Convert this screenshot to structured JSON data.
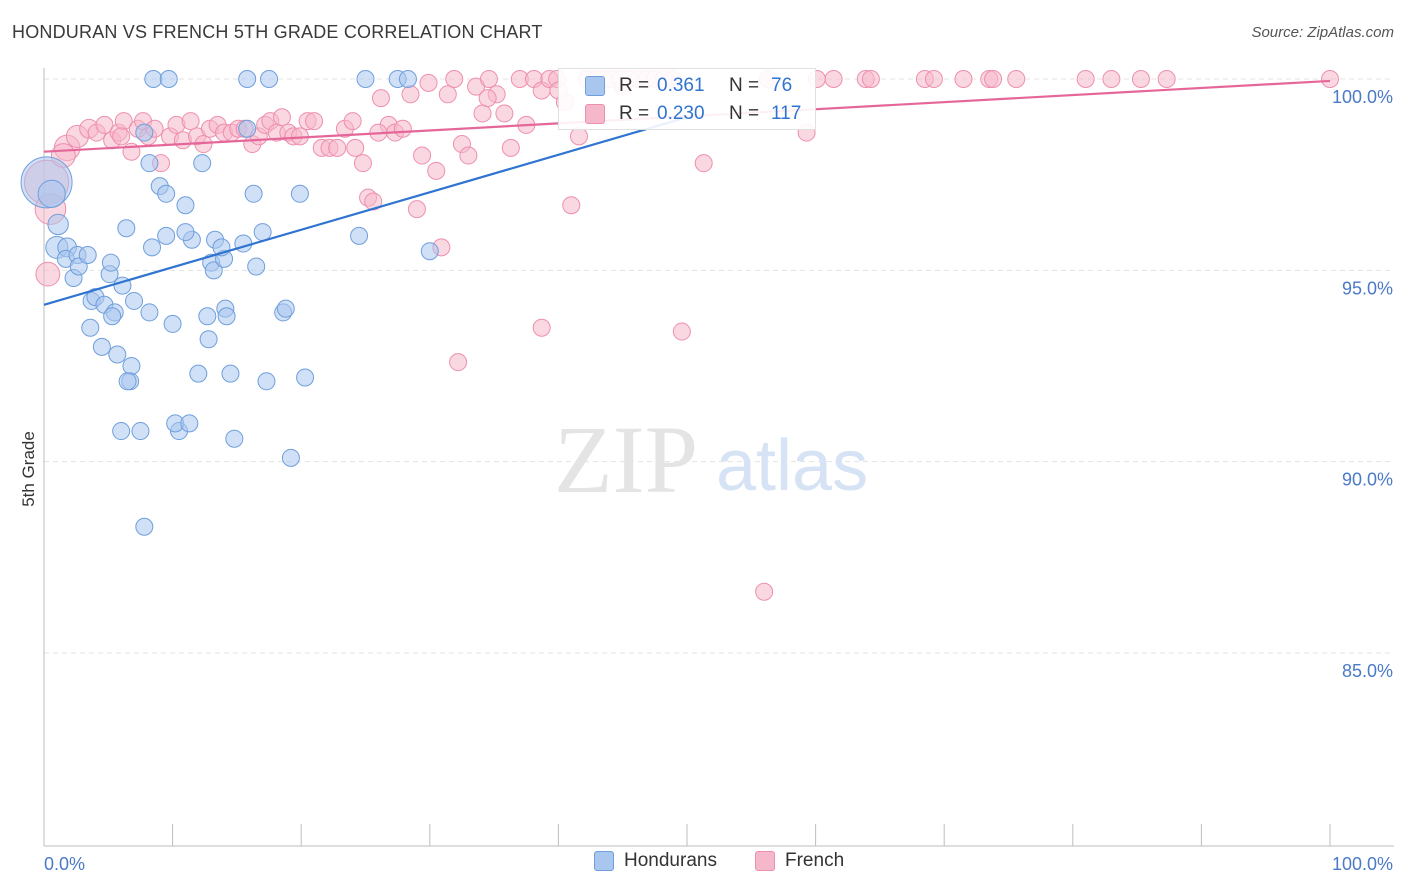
{
  "header": {
    "title": "HONDURAN VS FRENCH 5TH GRADE CORRELATION CHART",
    "source": "Source: ZipAtlas.com"
  },
  "watermark": {
    "zip": "ZIP",
    "atlas": "atlas"
  },
  "colors": {
    "blue_fill": "#a9c6ef",
    "blue_stroke": "#6f9fdc",
    "blue_line": "#2f74d0",
    "pink_fill": "#f5b8cb",
    "pink_stroke": "#ee8fae",
    "pink_line": "#e5679a",
    "axis_label": "#4a7ac7",
    "grid": "#e3e3e3"
  },
  "stats": {
    "hondurans": {
      "r_label": "R =",
      "r_value": "0.361",
      "n_label": "N =",
      "n_value": "76"
    },
    "french": {
      "r_label": "R =",
      "r_value": "0.230",
      "n_label": "N =",
      "n_value": "117"
    }
  },
  "legend": {
    "hondurans": "Hondurans",
    "french": "French"
  },
  "chart_data": {
    "type": "scatter",
    "title": "HONDURAN VS FRENCH 5TH GRADE CORRELATION CHART",
    "xlabel": "",
    "ylabel": "5th Grade",
    "xlim": [
      0,
      100
    ],
    "ylim": [
      80.5,
      100.3
    ],
    "x_tick_labels": [
      "0.0%",
      "100.0%"
    ],
    "y_ticks": [
      85,
      90,
      95,
      100
    ],
    "y_tick_labels": [
      "85.0%",
      "90.0%",
      "95.0%",
      "100.0%"
    ],
    "grid": "horizontal dashed",
    "legend_position": "bottom-center",
    "series": [
      {
        "name": "Hondurans",
        "color": "#a9c6ef",
        "trend": {
          "x": [
            0,
            50
          ],
          "y": [
            94.1,
            99.0
          ]
        },
        "points": [
          [
            0.2,
            97.3,
            3
          ],
          [
            0.6,
            97.0,
            1.6
          ],
          [
            1.1,
            96.2,
            1.2
          ],
          [
            1.0,
            95.6,
            1.3
          ],
          [
            1.8,
            95.6,
            1.1
          ],
          [
            1.7,
            95.3,
            1.0
          ],
          [
            2.3,
            94.8,
            1.0
          ],
          [
            2.6,
            95.4,
            1.0
          ],
          [
            2.7,
            95.1,
            1.0
          ],
          [
            3.4,
            95.4,
            1.0
          ],
          [
            3.7,
            94.2,
            1.0
          ],
          [
            4.0,
            94.3,
            1.0
          ],
          [
            3.6,
            93.5,
            1.0
          ],
          [
            4.5,
            93.0,
            1.0
          ],
          [
            4.7,
            94.1,
            1.0
          ],
          [
            5.1,
            94.9,
            1.0
          ],
          [
            5.2,
            95.2,
            1.0
          ],
          [
            5.5,
            93.9,
            1.0
          ],
          [
            5.7,
            92.8,
            1.0
          ],
          [
            6.1,
            94.6,
            1.0
          ],
          [
            6.4,
            96.1,
            1.0
          ],
          [
            6.7,
            92.1,
            1.0
          ],
          [
            6.8,
            92.5,
            1.0
          ],
          [
            7.0,
            94.2,
            1.0
          ],
          [
            7.5,
            90.8,
            1.0
          ],
          [
            7.8,
            98.6,
            1.0
          ],
          [
            8.2,
            93.9,
            1.0
          ],
          [
            8.2,
            97.8,
            1.0
          ],
          [
            8.4,
            95.6,
            1.0
          ],
          [
            9.0,
            97.2,
            1.0
          ],
          [
            9.5,
            97.0,
            1.0
          ],
          [
            9.5,
            95.9,
            1.0
          ],
          [
            10.0,
            93.6,
            1.0
          ],
          [
            10.5,
            90.8,
            1.0
          ],
          [
            11.0,
            96.7,
            1.0
          ],
          [
            11.5,
            95.8,
            1.0
          ],
          [
            12.0,
            92.3,
            1.0
          ],
          [
            12.3,
            97.8,
            1.0
          ],
          [
            12.7,
            93.8,
            1.0
          ],
          [
            13.0,
            95.2,
            1.0
          ],
          [
            13.2,
            95.0,
            1.0
          ],
          [
            13.3,
            95.8,
            1.0
          ],
          [
            14.0,
            95.3,
            1.0
          ],
          [
            14.1,
            94.0,
            1.0
          ],
          [
            14.5,
            92.3,
            1.0
          ],
          [
            14.8,
            90.6,
            1.0
          ],
          [
            15.5,
            95.7,
            1.0
          ],
          [
            15.8,
            98.7,
            1.0
          ],
          [
            16.3,
            97.0,
            1.0
          ],
          [
            16.5,
            95.1,
            1.0
          ],
          [
            17.0,
            96.0,
            1.0
          ],
          [
            17.3,
            92.1,
            1.0
          ],
          [
            18.6,
            93.9,
            1.0
          ],
          [
            19.2,
            90.1,
            1.0
          ],
          [
            19.9,
            97.0,
            1.0
          ],
          [
            20.3,
            92.2,
            1.0
          ],
          [
            7.8,
            88.3,
            1.0
          ],
          [
            8.5,
            100.0,
            1.0
          ],
          [
            9.7,
            100.0,
            1.0
          ],
          [
            15.8,
            100.0,
            1.0
          ],
          [
            17.5,
            100.0,
            1.0
          ],
          [
            25.0,
            100.0,
            1.0
          ],
          [
            27.5,
            100.0,
            1.0
          ],
          [
            28.3,
            100.0,
            1.0
          ],
          [
            24.5,
            95.9,
            1.0
          ],
          [
            30.0,
            95.5,
            1.0
          ],
          [
            10.2,
            91.0,
            1.0
          ],
          [
            11.3,
            91.0,
            1.0
          ],
          [
            12.8,
            93.2,
            1.0
          ],
          [
            14.2,
            93.8,
            1.0
          ],
          [
            18.8,
            94.0,
            1.0
          ],
          [
            6.0,
            90.8,
            1.0
          ],
          [
            5.3,
            93.8,
            1.0
          ],
          [
            6.5,
            92.1,
            1.0
          ],
          [
            11.0,
            96.0,
            1.0
          ],
          [
            13.8,
            95.6,
            1.0
          ]
        ]
      },
      {
        "name": "French",
        "color": "#f5b8cb",
        "trend": {
          "x": [
            0,
            100
          ],
          "y": [
            98.1,
            99.95
          ]
        },
        "points": [
          [
            0.2,
            97.3,
            2.6
          ],
          [
            0.5,
            96.6,
            1.8
          ],
          [
            0.3,
            94.9,
            1.4
          ],
          [
            1.8,
            98.2,
            1.5
          ],
          [
            2.6,
            98.5,
            1.3
          ],
          [
            3.5,
            98.7,
            1.1
          ],
          [
            4.1,
            98.6,
            1.0
          ],
          [
            4.7,
            98.8,
            1.0
          ],
          [
            5.3,
            98.4,
            1.0
          ],
          [
            5.8,
            98.6,
            1.0
          ],
          [
            6.2,
            98.9,
            1.0
          ],
          [
            6.8,
            98.1,
            1.0
          ],
          [
            7.3,
            98.7,
            1.0
          ],
          [
            7.7,
            98.9,
            1.0
          ],
          [
            8.1,
            98.5,
            1.0
          ],
          [
            8.6,
            98.7,
            1.0
          ],
          [
            9.1,
            97.8,
            1.0
          ],
          [
            9.8,
            98.5,
            1.0
          ],
          [
            10.3,
            98.8,
            1.0
          ],
          [
            10.8,
            98.4,
            1.0
          ],
          [
            11.4,
            98.9,
            1.0
          ],
          [
            11.9,
            98.5,
            1.0
          ],
          [
            12.4,
            98.3,
            1.0
          ],
          [
            12.9,
            98.7,
            1.0
          ],
          [
            13.5,
            98.8,
            1.0
          ],
          [
            14.0,
            98.6,
            1.0
          ],
          [
            14.6,
            98.6,
            1.0
          ],
          [
            15.1,
            98.7,
            1.0
          ],
          [
            15.6,
            98.7,
            1.0
          ],
          [
            16.2,
            98.3,
            1.0
          ],
          [
            16.7,
            98.5,
            1.0
          ],
          [
            17.2,
            98.8,
            1.0
          ],
          [
            17.6,
            98.9,
            1.0
          ],
          [
            18.1,
            98.6,
            1.0
          ],
          [
            18.5,
            99.0,
            1.0
          ],
          [
            19.0,
            98.6,
            1.0
          ],
          [
            19.4,
            98.5,
            1.0
          ],
          [
            19.9,
            98.5,
            1.0
          ],
          [
            20.5,
            98.9,
            1.0
          ],
          [
            21.0,
            98.9,
            1.0
          ],
          [
            21.6,
            98.2,
            1.0
          ],
          [
            22.2,
            98.2,
            1.0
          ],
          [
            22.8,
            98.2,
            1.0
          ],
          [
            23.4,
            98.7,
            1.0
          ],
          [
            24.0,
            98.9,
            1.0
          ],
          [
            24.2,
            98.2,
            1.0
          ],
          [
            24.8,
            97.8,
            1.0
          ],
          [
            25.2,
            96.9,
            1.0
          ],
          [
            25.6,
            96.8,
            1.0
          ],
          [
            26.2,
            99.5,
            1.0
          ],
          [
            26.8,
            98.8,
            1.0
          ],
          [
            27.3,
            98.6,
            1.0
          ],
          [
            27.9,
            98.7,
            1.0
          ],
          [
            28.5,
            99.6,
            1.0
          ],
          [
            29.0,
            96.6,
            1.0
          ],
          [
            29.4,
            98.0,
            1.0
          ],
          [
            29.9,
            99.9,
            1.0
          ],
          [
            30.5,
            97.6,
            1.0
          ],
          [
            30.9,
            95.6,
            1.0
          ],
          [
            31.4,
            99.6,
            1.0
          ],
          [
            31.9,
            100.0,
            1.0
          ],
          [
            32.5,
            98.3,
            1.0
          ],
          [
            33.0,
            98.0,
            1.0
          ],
          [
            33.6,
            99.8,
            1.0
          ],
          [
            34.1,
            99.1,
            1.0
          ],
          [
            34.6,
            100.0,
            1.0
          ],
          [
            35.2,
            99.6,
            1.0
          ],
          [
            35.8,
            99.1,
            1.0
          ],
          [
            36.3,
            98.2,
            1.0
          ],
          [
            37.0,
            100.0,
            1.0
          ],
          [
            37.5,
            98.8,
            1.0
          ],
          [
            38.1,
            100.0,
            1.0
          ],
          [
            38.7,
            99.7,
            1.0
          ],
          [
            39.3,
            100.0,
            1.0
          ],
          [
            39.9,
            100.0,
            1.0
          ],
          [
            40.5,
            99.4,
            1.0
          ],
          [
            41.0,
            96.7,
            1.0
          ],
          [
            41.6,
            98.5,
            1.0
          ],
          [
            42.2,
            100.0,
            1.0
          ],
          [
            42.9,
            100.0,
            1.0
          ],
          [
            43.5,
            100.0,
            1.0
          ],
          [
            44.1,
            100.0,
            1.0
          ],
          [
            44.8,
            100.0,
            1.0
          ],
          [
            45.5,
            100.0,
            1.0
          ],
          [
            46.2,
            100.0,
            1.0
          ],
          [
            46.9,
            100.0,
            1.0
          ],
          [
            47.5,
            100.0,
            1.0
          ],
          [
            48.2,
            100.0,
            1.0
          ],
          [
            48.9,
            100.0,
            1.0
          ],
          [
            49.6,
            93.4,
            1.0
          ],
          [
            51.3,
            97.8,
            1.0
          ],
          [
            56.3,
            100.0,
            1.0
          ],
          [
            59.3,
            98.6,
            1.0
          ],
          [
            60.1,
            100.0,
            1.0
          ],
          [
            61.4,
            100.0,
            1.0
          ],
          [
            63.9,
            100.0,
            1.0
          ],
          [
            64.3,
            100.0,
            1.0
          ],
          [
            68.5,
            100.0,
            1.0
          ],
          [
            69.2,
            100.0,
            1.0
          ],
          [
            71.5,
            100.0,
            1.0
          ],
          [
            73.5,
            100.0,
            1.0
          ],
          [
            73.8,
            100.0,
            1.0
          ],
          [
            75.6,
            100.0,
            1.0
          ],
          [
            81.0,
            100.0,
            1.0
          ],
          [
            83.0,
            100.0,
            1.0
          ],
          [
            85.3,
            100.0,
            1.0
          ],
          [
            87.3,
            100.0,
            1.0
          ],
          [
            100.0,
            100.0,
            1.0
          ],
          [
            32.2,
            92.6,
            1.0
          ],
          [
            38.7,
            93.5,
            1.0
          ],
          [
            56.0,
            86.6,
            1.0
          ],
          [
            6.0,
            98.5,
            1.0
          ],
          [
            1.5,
            98.0,
            1.4
          ],
          [
            26.0,
            98.6,
            1.0
          ],
          [
            34.5,
            99.5,
            1.0
          ],
          [
            45.0,
            99.8,
            1.0
          ],
          [
            40.0,
            99.7,
            1.0
          ]
        ]
      }
    ]
  }
}
